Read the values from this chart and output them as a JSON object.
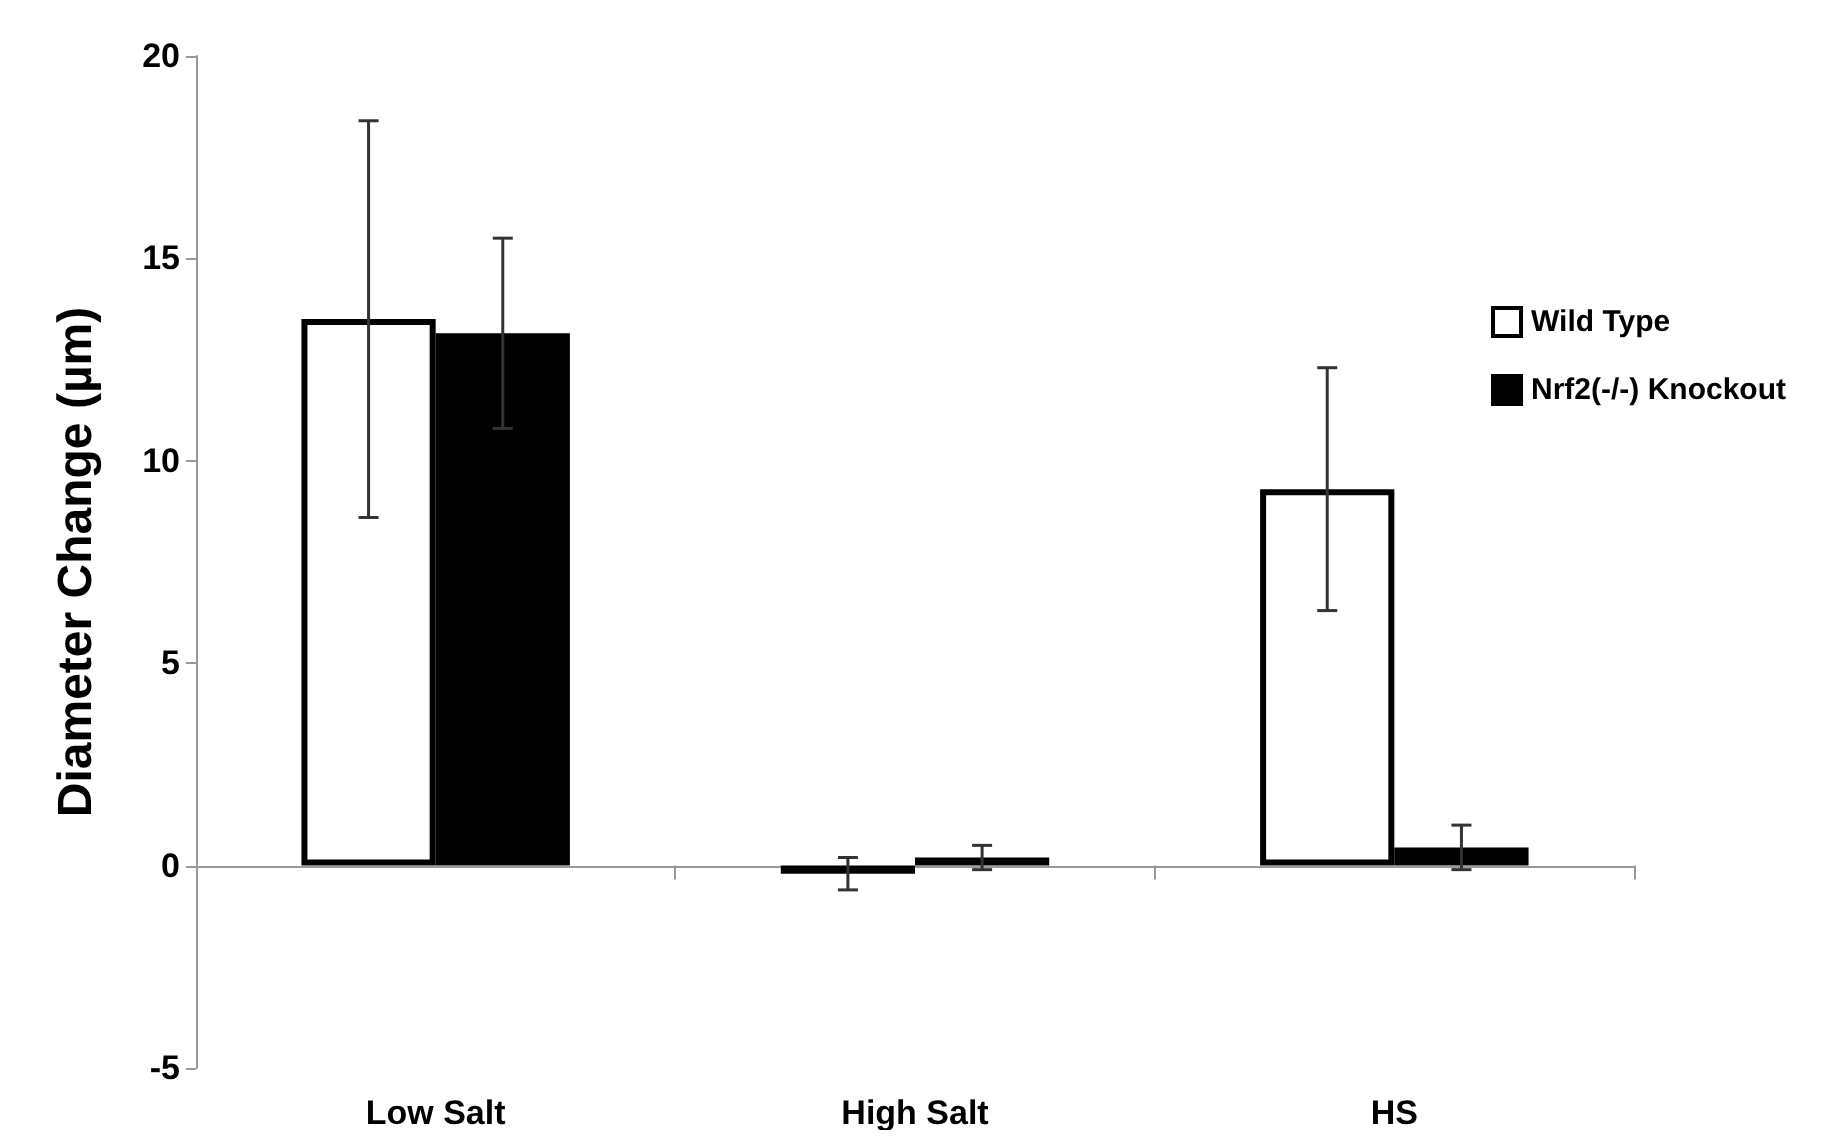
{
  "chart_data": {
    "type": "bar",
    "ylabel": "Diameter Change (µm)",
    "categories": [
      "Low Salt",
      "High Salt",
      "HS"
    ],
    "series": [
      {
        "name": "Wild Type",
        "color": "#ffffff",
        "values": [
          13.5,
          -0.2,
          9.3
        ],
        "errors": [
          4.9,
          0.4,
          3.0
        ]
      },
      {
        "name": "Nrf2(-/-) Knockout",
        "color": "#000000",
        "values": [
          13.15,
          0.2,
          0.45
        ],
        "errors": [
          2.35,
          0.3,
          0.55
        ]
      }
    ],
    "ylim": [
      -5,
      20
    ],
    "yticks": [
      -5,
      0,
      5,
      10,
      15,
      20
    ],
    "legend": "right"
  }
}
